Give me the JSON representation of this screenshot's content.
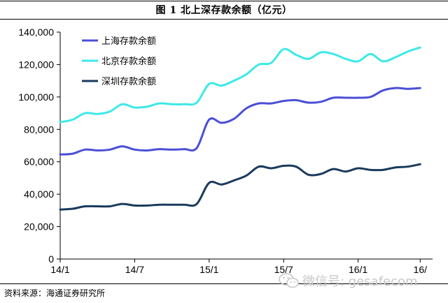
{
  "title": "图 1    北上深存款余额（亿元）",
  "source": "资料来源：海通证券研究所",
  "watermark": {
    "icon": "wechat-icon",
    "text": "微信号: gesafecom"
  },
  "chart_data": {
    "type": "line",
    "title": "",
    "xlabel": "",
    "ylabel": "",
    "ylim": [
      0,
      140000
    ],
    "yticks": [
      0,
      20000,
      40000,
      60000,
      80000,
      100000,
      120000,
      140000
    ],
    "ytick_labels": [
      "0",
      "20,000",
      "40,000",
      "60,000",
      "80,000",
      "100,000",
      "120,000",
      "140,000"
    ],
    "xticks": [
      0,
      6,
      12,
      18,
      24,
      29
    ],
    "xtick_labels": [
      "14/1",
      "14/7",
      "15/1",
      "15/7",
      "16/1",
      "16/"
    ],
    "xlim": [
      0,
      30
    ],
    "grid": false,
    "legend_position": "top-left",
    "x": [
      0,
      1,
      2,
      3,
      4,
      5,
      6,
      7,
      8,
      9,
      10,
      11,
      12,
      13,
      14,
      15,
      16,
      17,
      18,
      19,
      20,
      21,
      22,
      23,
      24,
      25,
      26,
      27,
      28,
      29
    ],
    "series": [
      {
        "name": "上海存款余额",
        "color": "#4b4fd6",
        "values": [
          64500,
          65000,
          67500,
          67000,
          67500,
          69500,
          67500,
          67000,
          67800,
          67500,
          67800,
          68500,
          86000,
          84000,
          86500,
          93000,
          96000,
          96000,
          97500,
          98000,
          96500,
          97000,
          99500,
          99500,
          99500,
          100000,
          104000,
          105500,
          105000,
          105500
        ]
      },
      {
        "name": "北京存款余额",
        "color": "#3ee8e8",
        "values": [
          84500,
          86000,
          90000,
          89500,
          91000,
          95500,
          93500,
          94000,
          96000,
          95500,
          95500,
          96500,
          108000,
          107000,
          110000,
          114000,
          120000,
          121000,
          129500,
          126000,
          123500,
          127500,
          126500,
          123500,
          122000,
          126500,
          122000,
          124500,
          128000,
          130500
        ]
      },
      {
        "name": "深圳存款余额",
        "color": "#1a3a5c",
        "values": [
          30500,
          31000,
          32500,
          32500,
          32500,
          34000,
          33000,
          33000,
          33500,
          33500,
          33500,
          34000,
          47000,
          46000,
          48500,
          51500,
          57000,
          56000,
          57500,
          57000,
          52000,
          52500,
          55500,
          54000,
          56000,
          55000,
          55000,
          56500,
          57000,
          58500
        ]
      }
    ]
  }
}
